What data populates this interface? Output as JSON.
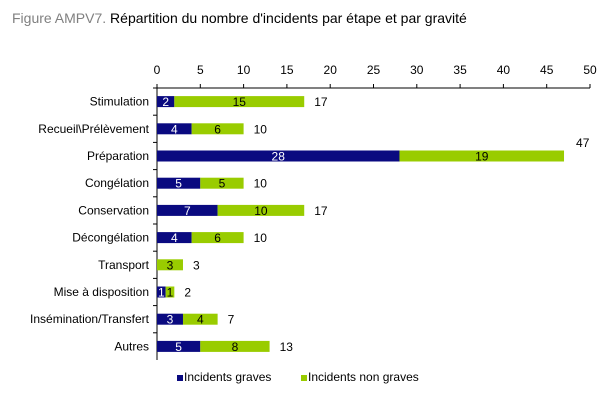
{
  "title": {
    "prefix": "Figure AMPV7.",
    "main": " Répartition du nombre d'incidents par étape et par gravité"
  },
  "colors": {
    "graves": "#0a0a80",
    "non_graves": "#99cc00",
    "axis": "#000000"
  },
  "chart_data": {
    "type": "bar",
    "orientation": "horizontal",
    "stacked": true,
    "title": "Répartition du nombre d'incidents par étape et par gravité",
    "categories": [
      "Stimulation",
      "Recueil\\Prélèvement",
      "Préparation",
      "Congélation",
      "Conservation",
      "Décongélation",
      "Transport",
      "Mise à disposition",
      "Insémination/Transfert",
      "Autres"
    ],
    "series": [
      {
        "name": "Incidents graves",
        "values": [
          2,
          4,
          28,
          5,
          7,
          4,
          0,
          1,
          3,
          5
        ]
      },
      {
        "name": "Incidents non graves",
        "values": [
          15,
          6,
          19,
          5,
          10,
          6,
          3,
          1,
          4,
          8
        ]
      }
    ],
    "totals": [
      17,
      10,
      47,
      10,
      17,
      10,
      3,
      2,
      7,
      13
    ],
    "xlim": [
      0,
      50
    ],
    "xticks": [
      0,
      5,
      10,
      15,
      20,
      25,
      30,
      35,
      40,
      45,
      50
    ],
    "x_axis_position": "top",
    "grid": false,
    "legend_position": "bottom"
  }
}
